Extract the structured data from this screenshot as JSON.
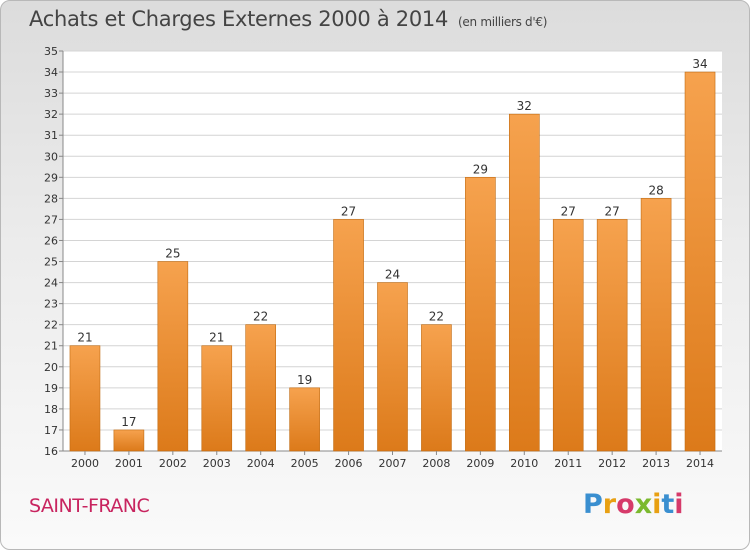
{
  "header": {
    "title": "Achats et Charges Externes 2000 à 2014",
    "unit": "(en milliers d'€)"
  },
  "footer": {
    "place": "SAINT-FRANC",
    "logo": "Proxiti"
  },
  "colors": {
    "bar_light": "#f6a24e",
    "bar_dark": "#dc7a1a",
    "bar_edge": "#c06a10",
    "place": "#c8245f"
  },
  "chart_data": {
    "type": "bar",
    "categories": [
      "2000",
      "2001",
      "2002",
      "2003",
      "2004",
      "2005",
      "2006",
      "2007",
      "2008",
      "2009",
      "2010",
      "2011",
      "2012",
      "2013",
      "2014"
    ],
    "values": [
      21,
      17,
      25,
      21,
      22,
      19,
      27,
      24,
      22,
      29,
      32,
      27,
      27,
      28,
      34
    ],
    "title": "Achats et Charges Externes 2000 à 2014",
    "xlabel": "",
    "ylabel": "",
    "ylim": [
      16,
      35
    ],
    "yticks": [
      16,
      17,
      18,
      19,
      20,
      21,
      22,
      23,
      24,
      25,
      26,
      27,
      28,
      29,
      30,
      31,
      32,
      33,
      34,
      35
    ],
    "grid": true
  }
}
